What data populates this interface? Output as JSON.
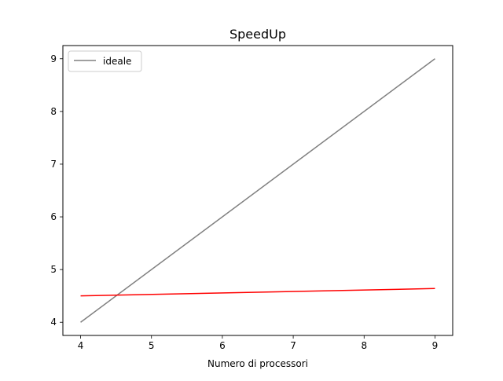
{
  "chart_data": {
    "type": "line",
    "title": "SpeedUp",
    "xlabel": "Numero di processori",
    "ylabel": "",
    "xlim": [
      3.75,
      9.25
    ],
    "ylim": [
      3.75,
      9.25
    ],
    "xticks": [
      4,
      5,
      6,
      7,
      8,
      9
    ],
    "yticks": [
      4,
      5,
      6,
      7,
      8,
      9
    ],
    "grid": false,
    "legend": {
      "position": "upper-left",
      "entries": [
        "ideale"
      ]
    },
    "series": [
      {
        "name": "ideale",
        "color": "#808080",
        "x": [
          4,
          9
        ],
        "y": [
          4,
          9
        ]
      },
      {
        "color": "#ff0000",
        "x": [
          4,
          9
        ],
        "y": [
          4.5,
          4.64
        ]
      }
    ]
  }
}
